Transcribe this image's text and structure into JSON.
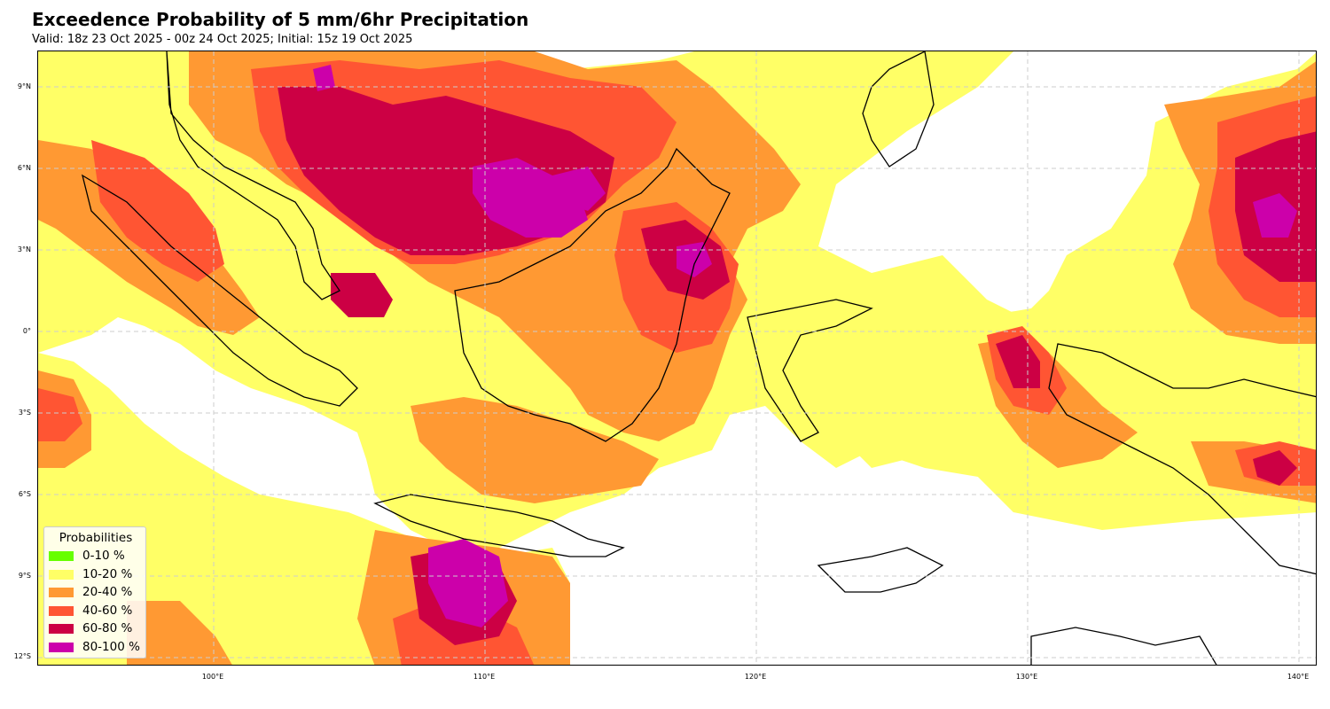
{
  "header": {
    "title": "Exceedence Probability of 5 mm/6hr Precipitation",
    "subtitle": "Valid: 18z 23 Oct 2025 - 00z 24 Oct 2025; Initial: 15z 19 Oct 2025"
  },
  "map": {
    "lat_labels": [
      "9°N",
      "6°N",
      "3°N",
      "0°",
      "3°S",
      "6°S",
      "9°S",
      "12°S"
    ],
    "lon_labels": [
      "100°E",
      "110°E",
      "120°E",
      "130°E",
      "140°E"
    ],
    "colors": {
      "p10_20": "#ffff66",
      "p20_40": "#ff9933",
      "p40_60": "#ff5533",
      "p60_80": "#cc0044",
      "p80_100": "#cc00aa",
      "coastline": "#000000",
      "grid": "#cccccc"
    }
  },
  "legend": {
    "title": "Probabilities",
    "items": [
      {
        "label": "0-10 %",
        "color": "#66ff00"
      },
      {
        "label": "10-20 %",
        "color": "#ffff66"
      },
      {
        "label": "20-40 %",
        "color": "#ff9933"
      },
      {
        "label": "40-60 %",
        "color": "#ff5533"
      },
      {
        "label": "60-80 %",
        "color": "#cc0044"
      },
      {
        "label": "80-100 %",
        "color": "#cc00aa"
      }
    ]
  }
}
